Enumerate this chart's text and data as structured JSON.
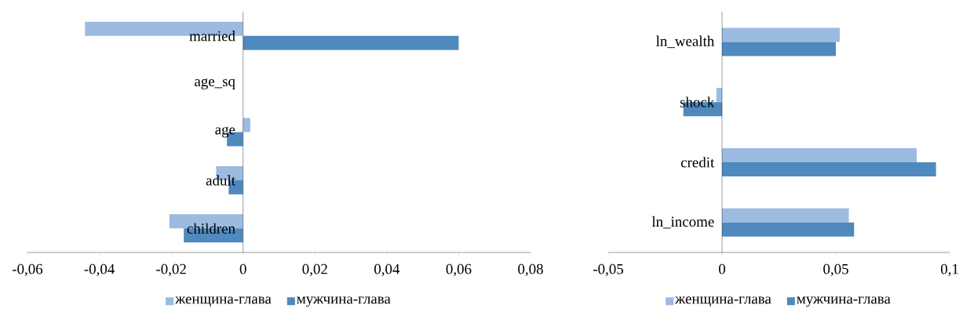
{
  "chart_data": [
    {
      "type": "bar",
      "orientation": "horizontal",
      "categories": [
        "married",
        "age_sq",
        "age",
        "adult",
        "children"
      ],
      "series": [
        {
          "name": "женщина-глава",
          "color": "#9bbbe0",
          "values": [
            -0.044,
            0,
            0.002,
            -0.0075,
            -0.0205
          ]
        },
        {
          "name": "мужчина-глава",
          "color": "#4f89bd",
          "values": [
            0.06,
            0,
            -0.0045,
            -0.004,
            -0.0165
          ]
        }
      ],
      "xlim": [
        -0.06,
        0.08
      ],
      "xticks": [
        {
          "value": -0.06,
          "label": "-0,06"
        },
        {
          "value": -0.04,
          "label": "-0,04"
        },
        {
          "value": -0.02,
          "label": "-0,02"
        },
        0,
        {
          "value": 0.02,
          "label": "0,02"
        },
        {
          "value": 0.04,
          "label": "0,04"
        },
        {
          "value": 0.06,
          "label": "0,06"
        },
        {
          "value": 0.08,
          "label": "0,08"
        }
      ],
      "legend": "bottom"
    },
    {
      "type": "bar",
      "orientation": "horizontal",
      "categories": [
        "ln_wealth",
        "shock",
        "credit",
        "ln_income"
      ],
      "series": [
        {
          "name": "женщина-глава",
          "color": "#9bbbe0",
          "values": [
            0.0517,
            -0.0025,
            0.0855,
            0.0557
          ]
        },
        {
          "name": "мужчина-глава",
          "color": "#4f89bd",
          "values": [
            0.05,
            -0.017,
            0.094,
            0.058
          ]
        }
      ],
      "xlim": [
        -0.05,
        0.1
      ],
      "xticks": [
        {
          "value": -0.05,
          "label": "-0,05"
        },
        0,
        {
          "value": 0.05,
          "label": "0,05"
        },
        {
          "value": 0.1,
          "label": "0,1"
        }
      ],
      "legend": "bottom"
    }
  ]
}
